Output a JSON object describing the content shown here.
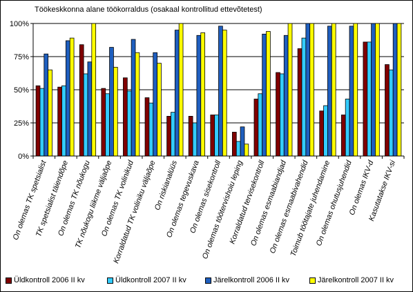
{
  "chart_data": {
    "type": "bar",
    "title": "Töökeskkonna alane töökorraldus (osakaal kontrollitud ettevõtetest)",
    "categories": [
      "On olemas TK spetsialist",
      "TK spetsialist täiendõpe",
      "On olemas TK nõukogu",
      "TK nõukogu liikme väljaõpe",
      "On olemas TK volinikud",
      "Korraldatud TK voliniku väljaõpe",
      "On riskianalüüs",
      "On olemas tegevuskava",
      "On olemas sisekontroll",
      "On olemas töötervishoiu leping",
      "Korraldatud tervisekontroll",
      "On olemas esmaabiandjad",
      "On olemas esmaabivahendid",
      "Toimub töötajate juhendamine",
      "On olemas ohutusjuhendid",
      "On olemas IKV-d",
      "Kasutatakse IKV-si"
    ],
    "series": [
      {
        "name": "Üldkontroll 2006 II kv",
        "color": "#800000",
        "values": [
          53,
          52,
          84,
          51,
          59,
          44,
          30,
          30,
          31,
          18,
          43,
          63,
          81,
          34,
          31,
          86,
          69
        ]
      },
      {
        "name": "Üldkontroll 2007 II kv",
        "color": "#33ccff",
        "values": [
          51,
          53,
          62,
          47,
          49,
          40,
          33,
          25,
          31,
          11,
          47,
          62,
          89,
          38,
          43,
          86,
          65
        ]
      },
      {
        "name": "Järelkontroll 2006 II kv",
        "color": "#1f5fbf",
        "values": [
          77,
          87,
          71,
          82,
          88,
          78,
          95,
          91,
          98,
          22,
          92,
          91,
          100,
          98,
          98,
          100,
          100
        ]
      },
      {
        "name": "Järelkontroll 2007 II kv",
        "color": "#ffff00",
        "values": [
          65,
          89,
          100,
          67,
          78,
          70,
          100,
          93,
          95,
          9,
          94,
          100,
          100,
          100,
          100,
          100,
          100
        ]
      }
    ],
    "y_ticks": [
      "0%",
      "25%",
      "50%",
      "75%",
      "100%"
    ],
    "ylim": [
      0,
      100
    ],
    "grid": true,
    "legend_position": "bottom",
    "plot_background": "#ffffff"
  }
}
